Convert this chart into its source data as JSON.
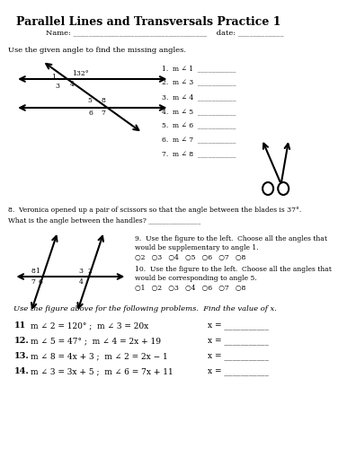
{
  "title": "Parallel Lines and Transversals Practice 1",
  "name_line": "Name: ___________________________________    date: ____________",
  "instruction1": "Use the given angle to find the missing angles.",
  "angle_label": "132°",
  "questions_1_8": [
    "1.  m ∠ 1  ___________",
    "2.  m ∠ 3  ___________",
    "3.  m ∠ 4  ___________",
    "4.  m ∠ 5  ___________",
    "5.  m ∠ 6  ___________",
    "6.  m ∠ 7  ___________",
    "7.  m ∠ 8  ___________"
  ],
  "q8": "8.  Veronica opened up a pair of scissors so that the angle between the blades is 37°.",
  "q8b": "What is the angle between the handles? _______________",
  "q9": "9.  Use the figure to the left.  Choose all the angles that",
  "q9b": "would be supplementary to angle 1.",
  "q9c": "○2   ○3   ○4   ○5   ○6   ○7   ○8",
  "q10": "10.  Use the figure to the left.  Choose all the angles that",
  "q10b": "would be corresponding to angle 5.",
  "q10c": "○1   ○2   ○3   ○4   ○6   ○7   ○8",
  "instruction2": "Use the figure above for the following problems.  Find the value of x.",
  "problems": [
    [
      "11",
      "m ∠ 2 = 120° ;  m ∠ 3 = 20x",
      "x = ___________"
    ],
    [
      "12.",
      "m ∠ 5 = 47° ;  m ∠ 4 = 2x + 19",
      "x = ___________"
    ],
    [
      "13.",
      "m ∠ 8 = 4x + 3 ;  m ∠ 2 = 2x − 1",
      "x = ___________"
    ],
    [
      "14.",
      "m ∠ 3 = 3x + 5 ;  m ∠ 6 = 7x + 11",
      "x = ___________"
    ]
  ],
  "bg_color": "#ffffff",
  "text_color": "#000000",
  "line_color": "#000000"
}
